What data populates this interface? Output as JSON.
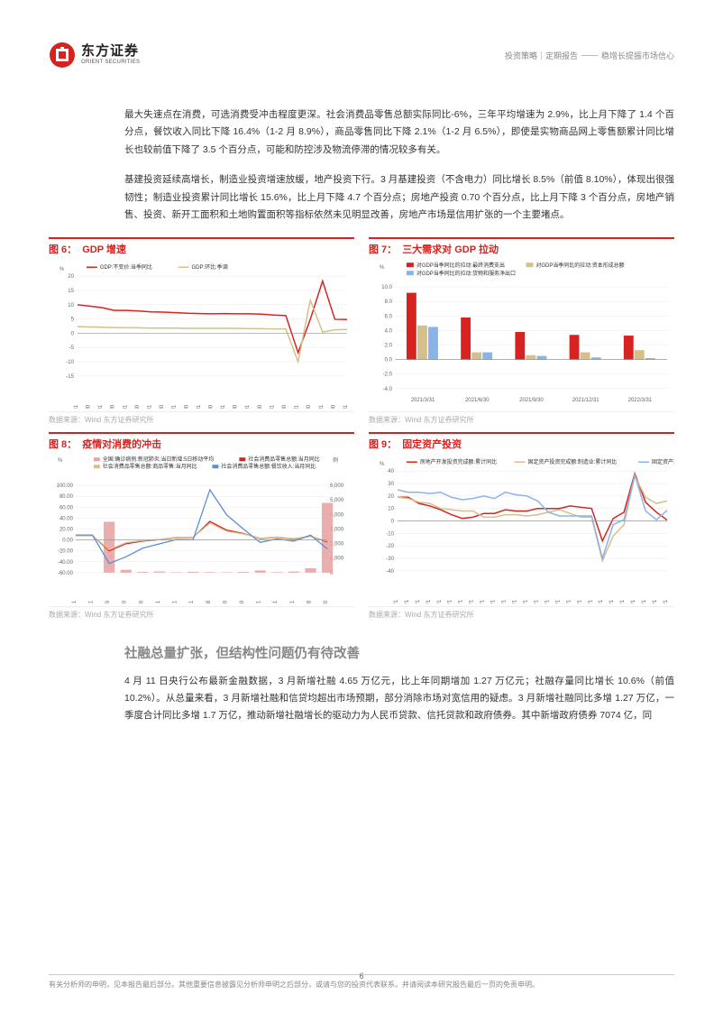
{
  "header": {
    "logo_cn": "东方证券",
    "logo_en": "ORIENT SECURITIES",
    "breadcrumb_left": "投资策略｜定期报告",
    "breadcrumb_right": "稳增长提振市场信心"
  },
  "paragraphs": {
    "p1": "最大失速点在消费，可选消费受冲击程度更深。社会消费品零售总额实际同比-6%，三年平均增速为 2.9%，比上月下降了 1.4 个百分点，餐饮收入同比下降 16.4%（1-2 月 8.9%），商品零售同比下降 2.1%（1-2 月 6.5%），即使是实物商品网上零售额累计同比增长也较前值下降了 3.5 个百分点，可能和防控涉及物流停滞的情况较多有关。",
    "p2": "基建投资延续高增长，制造业投资增速放缓，地产投资下行。3 月基建投资（不含电力）同比增长 8.5%（前值 8.10%），体现出很强韧性；制造业投资累计同比增长 15.6%，比上月下降 4.7 个百分点；房地产投资 0.70 个百分点，比上月下降 3 个百分点，房地产销售、投资、新开工面积和土地购置面积等指标依然未见明显改善，房地产市场是信用扩张的一个主要堵点。",
    "section": "社融总量扩张，但结构性问题仍有待改善",
    "p3": "4 月 11 日央行公布最新金融数据，3 月新增社融 4.65 万亿元，比上年同期增加 1.27 万亿元；社融存量同比增长 10.6%（前值 10.2%）。从总量来看，3 月新增社融和信贷均超出市场预期，部分消除市场对宽信用的疑虑。3 月新增社融同比多增 1.27 万亿，一季度合计同比多增 1.7 万亿，推动新增社融增长的驱动力为人民币贷款、信托贷款和政府债券。其中新增政府债券 7074 亿，同"
  },
  "charts": {
    "c6": {
      "num": "图 6：",
      "title": "GDP 增速",
      "type": "line",
      "legend": [
        "GDP:不变价:当季同比",
        "GDP:环比:季调"
      ],
      "legend_colors": [
        "#d7221f",
        "#d4c088"
      ],
      "y_unit": "%",
      "ylim": [
        -15,
        20
      ],
      "ytick_step": 5,
      "xlabels": [
        "2011/3/31",
        "2011/9/30",
        "2012/3/31",
        "2012/9/30",
        "2013/3/31",
        "2013/9/30",
        "2014/3/31",
        "2014/9/30",
        "2015/3/31",
        "2015/9/30",
        "2016/3/31",
        "2016/9/30",
        "2017/3/31",
        "2017/9/30",
        "2018/3/31",
        "2018/9/30",
        "2019/3/31",
        "2019/9/30",
        "2020/3/31",
        "2020/9/30",
        "2021/3/31",
        "2021/9/30",
        "2022/3/31"
      ],
      "series1": [
        10,
        9.5,
        9,
        8,
        8,
        7.8,
        7.5,
        7.4,
        7.2,
        7,
        6.9,
        6.8,
        6.9,
        6.8,
        6.8,
        6.7,
        6.4,
        6.2,
        -6.8,
        4.9,
        18.3,
        4.9,
        4.8
      ],
      "series2": [
        2.3,
        2.2,
        2.1,
        2,
        1.9,
        1.9,
        1.8,
        1.8,
        1.8,
        1.7,
        1.7,
        1.7,
        1.7,
        1.7,
        1.6,
        1.6,
        1.5,
        1.5,
        -10,
        11.6,
        0.4,
        1.2,
        1.3
      ],
      "grid_color": "#e8e8e8",
      "source": "数据来源：Wind        东方证券研究所"
    },
    "c7": {
      "num": "图 7：",
      "title": "三大需求对 GDP 拉动",
      "type": "bar",
      "legend": [
        "对GDP当季同比的拉动:最终消费支出",
        "对GDP当季同比的拉动:资本形成总额",
        "对GDP当季同比的拉动:货物和服务净出口"
      ],
      "legend_colors": [
        "#d7221f",
        "#d4c088",
        "#8ab4e8"
      ],
      "y_unit": "%",
      "ylim": [
        -4,
        10
      ],
      "ytick_step": 2,
      "categories": [
        "2021/3/31",
        "2021/6/30",
        "2021/9/30",
        "2021/12/31",
        "2022/3/31"
      ],
      "series": [
        [
          9.2,
          5.8,
          3.8,
          3.4,
          3.3
        ],
        [
          4.7,
          1.0,
          0.6,
          1.0,
          1.3
        ],
        [
          4.5,
          1.0,
          0.5,
          0.3,
          0.2
        ]
      ],
      "grid_color": "#e8e8e8",
      "source": "数据来源：Wind        东方证券研究所"
    },
    "c8": {
      "num": "图 8：",
      "title": "疫情对消费的冲击",
      "type": "line_bar",
      "legend": [
        "全国:确诊病例:新冠肺炎:当日新增:5日移动平均",
        "社会消费品零售总额:当月同比",
        "社会消费品零售总额:商品零售:当月同比",
        "社会消费品零售总额:餐饮收入:当月同比"
      ],
      "legend_colors": [
        "#e8a0a0",
        "#d7221f",
        "#d4c088",
        "#5b8fd4"
      ],
      "y_unit_left": "%",
      "y_unit_right": "例",
      "ylim_left": [
        -60,
        100
      ],
      "ytick_left": 20,
      "ylim_right": [
        0,
        6000
      ],
      "ytick_right": 1000,
      "xlabels": [
        "2019/10/31",
        "2019/12/31",
        "2020/2/29",
        "2020/4/30",
        "2020/6/30",
        "2020/8/31",
        "2020/10/31",
        "2020/12/31",
        "2021/2/28",
        "2021/4/30",
        "2021/6/30",
        "2021/8/31",
        "2021/10/31",
        "2021/12/31",
        "2022/2/28",
        "2022/4/30"
      ],
      "bar_series": [
        0,
        0,
        3500,
        200,
        50,
        80,
        30,
        60,
        40,
        30,
        50,
        150,
        40,
        80,
        300,
        4800
      ],
      "line1": [
        8,
        8,
        -20,
        -7,
        -2,
        0.5,
        4.3,
        4.6,
        34,
        18,
        12,
        2.5,
        5,
        1.7,
        6.7,
        -3.5
      ],
      "line2": [
        8,
        8,
        -18,
        -5,
        -1,
        1,
        4.8,
        5,
        31,
        16,
        11,
        3,
        5.2,
        2.3,
        6.5,
        -2.1
      ],
      "line3": [
        9,
        9,
        -43,
        -31,
        -15,
        -7,
        0.8,
        0.4,
        92,
        46,
        20,
        -4.5,
        2,
        -2.2,
        8.9,
        -16.4
      ],
      "grid_color": "#e8e8e8",
      "source": "数据来源：Wind        东方证券研究所"
    },
    "c9": {
      "num": "图 9：",
      "title": "固定资产投资",
      "type": "line",
      "legend": [
        "房地产开发投资完成额:累计同比",
        "固定资产投资完成额:制造业:累计同比",
        "固定资产投资完成额:基础设施建设投资(不含电力):累计同比"
      ],
      "legend_colors": [
        "#d7221f",
        "#d4c088",
        "#8ab4e8"
      ],
      "y_unit": "%",
      "ylim": [
        -40,
        40
      ],
      "ytick_step": 10,
      "xlabels": [
        "2013/10/1",
        "2014/2/1",
        "2014/6/1",
        "2014/10/1",
        "2015/2/1",
        "2015/6/1",
        "2015/10/1",
        "2016/2/1",
        "2016/6/1",
        "2016/10/1",
        "2017/2/1",
        "2017/6/1",
        "2017/10/1",
        "2018/2/1",
        "2018/6/1",
        "2018/10/1",
        "2019/2/1",
        "2019/6/1",
        "2019/10/1",
        "2020/2/1",
        "2020/6/1",
        "2020/10/1",
        "2021/2/1",
        "2021/6/1",
        "2021/10/1",
        "2022/2/1"
      ],
      "series1": [
        19,
        19,
        14,
        12,
        9,
        5,
        2,
        3,
        6,
        6,
        9,
        8,
        8,
        10,
        10,
        10,
        12,
        11,
        10,
        -16,
        2,
        7,
        38,
        15,
        7,
        0.7
      ],
      "series2": [
        19,
        18,
        15,
        14,
        10,
        9,
        8,
        8,
        3,
        3,
        5,
        5,
        4,
        5,
        7,
        9,
        6,
        3,
        3,
        -32,
        -12,
        -3,
        36,
        19,
        14,
        16
      ],
      "series3": [
        25,
        23,
        23,
        22,
        23,
        19,
        17,
        18,
        20,
        18,
        23,
        21,
        20,
        16,
        7,
        4,
        4,
        4,
        4,
        -30,
        -3,
        1,
        37,
        8,
        1,
        8.5
      ],
      "grid_color": "#e8e8e8",
      "source": "数据来源：Wind        东方证券研究所"
    }
  },
  "footer": {
    "disclaimer": "有关分析师的申明，见本报告最后部分。其他重要信息披露见分析师申明之后部分，或请与您的投资代表联系。并请阅读本研究报告最后一页的免责申明。",
    "page_num": "6"
  },
  "colors": {
    "accent": "#d7221f",
    "text_muted": "#888",
    "grid": "#e8e8e8"
  }
}
